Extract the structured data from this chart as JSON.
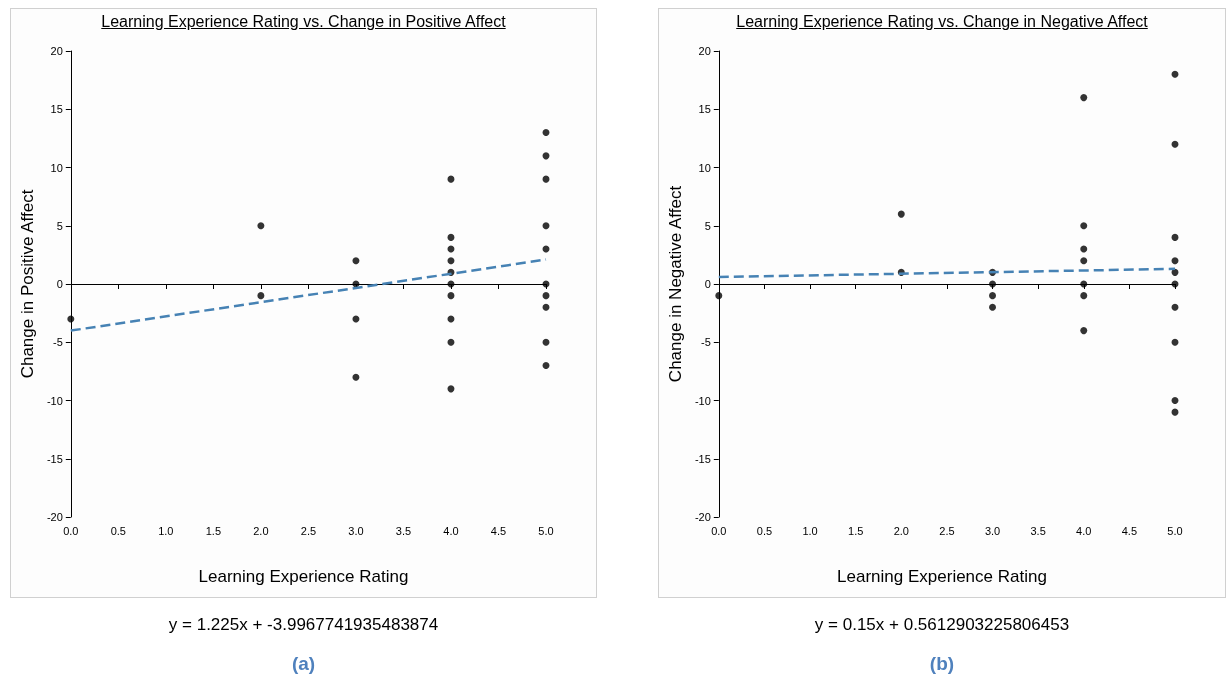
{
  "chart_data": [
    {
      "type": "scatter",
      "title": "Learning Experience Rating vs. Change in Positive Affect",
      "xlabel": "Learning Experience Rating",
      "ylabel": "Change in Positive Affect",
      "xlim": [
        0,
        5
      ],
      "xticks": [
        {
          "value": 0,
          "label": "0.0"
        },
        {
          "value": 0.5,
          "label": "0.5"
        },
        {
          "value": 1,
          "label": "1.0"
        },
        {
          "value": 1.5,
          "label": "1.5"
        },
        {
          "value": 2,
          "label": "2.0"
        },
        {
          "value": 2.5,
          "label": "2.5"
        },
        {
          "value": 3,
          "label": "3.0"
        },
        {
          "value": 3.5,
          "label": "3.5"
        },
        {
          "value": 4,
          "label": "4.0"
        },
        {
          "value": 4.5,
          "label": "4.5"
        },
        {
          "value": 5,
          "label": "5.0"
        }
      ],
      "ylim": [
        -20,
        20
      ],
      "yticks": [
        -20,
        -15,
        -10,
        -5,
        0,
        5,
        10,
        15,
        20
      ],
      "annotations": [
        "y = 1.225x + -3.9967741935483874",
        "(a)"
      ],
      "series": [
        {
          "color": "#000000",
          "marker": "circle",
          "x": [
            0,
            2,
            2,
            3,
            3,
            3,
            3,
            4,
            4,
            4,
            4,
            4,
            4,
            4,
            4,
            4,
            4,
            5,
            5,
            5,
            5,
            5,
            5,
            5,
            5,
            5,
            5
          ],
          "values": [
            -3,
            5,
            -1,
            2,
            0,
            -3,
            -8,
            9,
            4,
            3,
            2,
            1,
            0,
            -1,
            -3,
            -5,
            -9,
            13,
            11,
            9,
            5,
            3,
            0,
            -1,
            -2,
            -5,
            -7
          ]
        },
        {
          "type": "line",
          "color": "#4682b4",
          "marker": "none",
          "line_style": "dashed",
          "x": [
            0,
            5
          ],
          "values": [
            -4,
            2.1
          ]
        }
      ]
    },
    {
      "type": "scatter",
      "title": "Learning Experience Rating vs. Change in Negative Affect",
      "xlabel": "Learning Experience Rating",
      "ylabel": "Change in Negative Affect",
      "xlim": [
        0,
        5
      ],
      "xticks": [
        {
          "value": 0,
          "label": "0.0"
        },
        {
          "value": 0.5,
          "label": "0.5"
        },
        {
          "value": 1,
          "label": "1.0"
        },
        {
          "value": 1.5,
          "label": "1.5"
        },
        {
          "value": 2,
          "label": "2.0"
        },
        {
          "value": 2.5,
          "label": "2.5"
        },
        {
          "value": 3,
          "label": "3.0"
        },
        {
          "value": 3.5,
          "label": "3.5"
        },
        {
          "value": 4,
          "label": "4.0"
        },
        {
          "value": 4.5,
          "label": "4.5"
        },
        {
          "value": 5,
          "label": "5.0"
        }
      ],
      "ylim": [
        -20,
        20
      ],
      "yticks": [
        -20,
        -15,
        -10,
        -5,
        0,
        5,
        10,
        15,
        20
      ],
      "annotations": [
        "y = 0.15x + 0.5612903225806453",
        "(b)"
      ],
      "series": [
        {
          "color": "#000000",
          "marker": "circle",
          "x": [
            0,
            2,
            2,
            3,
            3,
            3,
            3,
            4,
            4,
            4,
            4,
            4,
            4,
            4,
            5,
            5,
            5,
            5,
            5,
            5,
            5,
            5,
            5,
            5
          ],
          "values": [
            -1,
            6,
            1,
            1,
            0,
            -1,
            -2,
            16,
            5,
            3,
            2,
            0,
            -1,
            -4,
            18,
            12,
            4,
            2,
            1,
            0,
            -2,
            -5,
            -10,
            -11
          ]
        },
        {
          "type": "line",
          "color": "#4682b4",
          "marker": "none",
          "line_style": "dashed",
          "x": [
            0,
            5
          ],
          "values": [
            0.6,
            1.3
          ]
        }
      ]
    }
  ]
}
